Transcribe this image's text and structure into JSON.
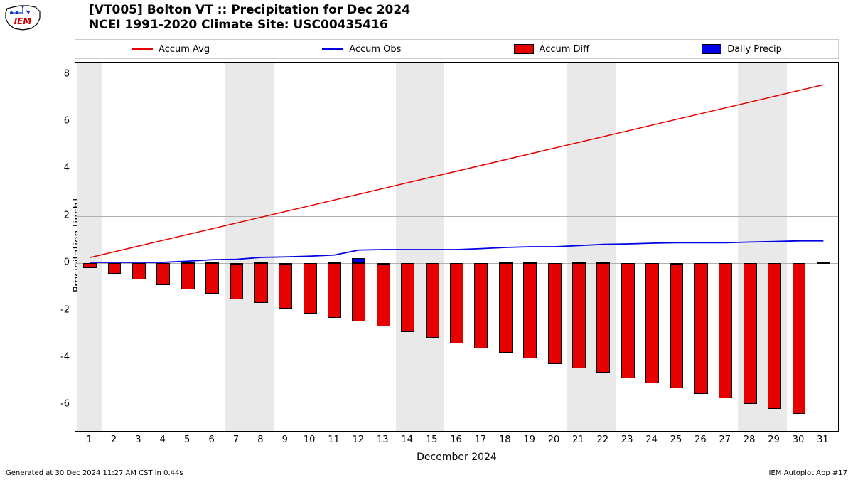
{
  "title_line1": "[VT005] Bolton  VT :: Precipitation for Dec 2024",
  "title_line2": "NCEI 1991-2020 Climate Site: USC00435416",
  "footer_left": "Generated at 30 Dec 2024 11:27 AM CST in 0.44s",
  "footer_right": "IEM Autoplot App #17",
  "ylabel": "Precipitation [inch]",
  "xlabel": "December 2024",
  "legend": {
    "items": [
      {
        "label": "Accum Avg",
        "type": "line",
        "color": "#e60000"
      },
      {
        "label": "Accum Obs",
        "type": "line",
        "color": "#0000e6"
      },
      {
        "label": "Accum Diff",
        "type": "block",
        "color": "#e60000"
      },
      {
        "label": "Daily Precip",
        "type": "block",
        "color": "#0000e6"
      }
    ]
  },
  "chart": {
    "type": "mixed-line-bar",
    "background_color": "#ffffff",
    "grid_color": "#b0b0b0",
    "weekend_band_color": "#e9e9e9",
    "ylim": [
      -7.1,
      8.5
    ],
    "yticks": [
      -6,
      -4,
      -2,
      0,
      2,
      4,
      6,
      8
    ],
    "xlim": [
      0.4,
      31.6
    ],
    "days": [
      1,
      2,
      3,
      4,
      5,
      6,
      7,
      8,
      9,
      10,
      11,
      12,
      13,
      14,
      15,
      16,
      17,
      18,
      19,
      20,
      21,
      22,
      23,
      24,
      25,
      26,
      27,
      28,
      29,
      30,
      31
    ],
    "weekend_days": [
      1,
      7,
      8,
      14,
      15,
      21,
      22,
      28,
      29
    ],
    "accum_avg": {
      "color": "#e60000",
      "width": 1.5,
      "x": [
        1,
        31
      ],
      "y": [
        0.244,
        7.56
      ]
    },
    "accum_obs": {
      "color": "#0000e6",
      "width": 1.8,
      "x": [
        1,
        2,
        3,
        4,
        5,
        6,
        7,
        8,
        9,
        10,
        11,
        12,
        13,
        14,
        15,
        16,
        17,
        18,
        19,
        20,
        21,
        22,
        23,
        24,
        25,
        26,
        27,
        28,
        29,
        30,
        31
      ],
      "y": [
        0.04,
        0.04,
        0.04,
        0.04,
        0.09,
        0.15,
        0.17,
        0.25,
        0.27,
        0.3,
        0.35,
        0.56,
        0.58,
        0.58,
        0.58,
        0.58,
        0.62,
        0.67,
        0.7,
        0.7,
        0.75,
        0.8,
        0.82,
        0.85,
        0.87,
        0.87,
        0.87,
        0.9,
        0.92,
        0.95,
        0.95
      ]
    },
    "accum_diff": {
      "color": "#e60000",
      "bar_width": 0.55,
      "x": [
        1,
        2,
        3,
        4,
        5,
        6,
        7,
        8,
        9,
        10,
        11,
        12,
        13,
        14,
        15,
        16,
        17,
        18,
        19,
        20,
        21,
        22,
        23,
        24,
        25,
        26,
        27,
        28,
        29,
        30
      ],
      "y": [
        -0.2,
        -0.45,
        -0.69,
        -0.93,
        -1.12,
        -1.3,
        -1.52,
        -1.69,
        -1.91,
        -2.13,
        -2.32,
        -2.46,
        -2.68,
        -2.92,
        -3.17,
        -3.41,
        -3.61,
        -3.8,
        -4.02,
        -4.26,
        -4.45,
        -4.64,
        -4.86,
        -5.08,
        -5.3,
        -5.54,
        -5.73,
        -5.95,
        -6.17,
        -6.39
      ]
    },
    "daily_precip": {
      "color": "#0000e6",
      "bar_width": 0.55,
      "x": [
        5,
        6,
        7,
        8,
        9,
        11,
        12,
        13,
        18,
        19,
        21,
        22,
        25,
        31
      ],
      "y": [
        0.05,
        0.06,
        0.02,
        0.08,
        0.02,
        0.05,
        0.21,
        0.02,
        0.05,
        0.03,
        0.05,
        0.05,
        0.02,
        0.03
      ]
    }
  },
  "logo": {
    "text": "IEM",
    "text_color": "#d00000",
    "outline_color": "#000000"
  }
}
